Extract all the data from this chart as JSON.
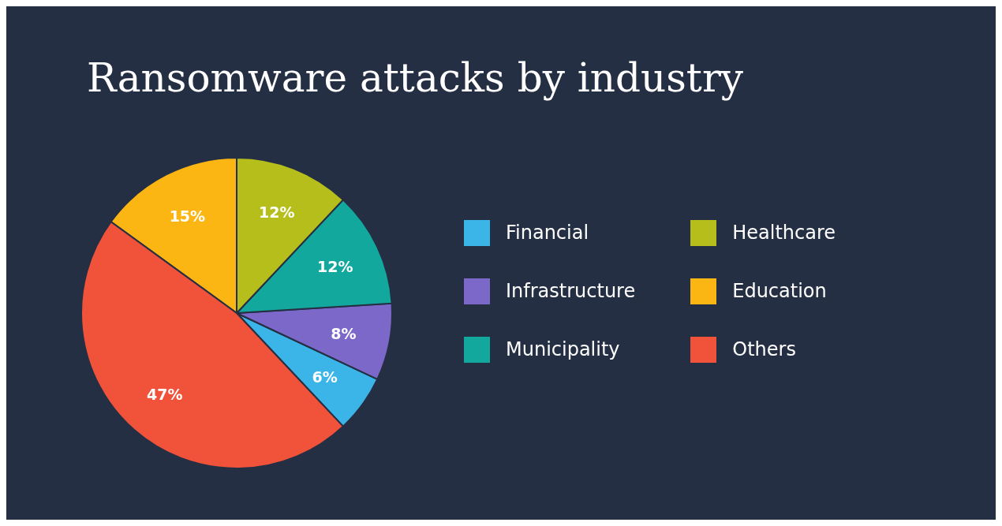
{
  "chart_data": {
    "type": "pie",
    "title": "Ransomware attacks by industry",
    "categories": [
      "Financial",
      "Infrastructure",
      "Municipality",
      "Healthcare",
      "Education",
      "Others"
    ],
    "values": [
      6,
      8,
      12,
      12,
      15,
      47
    ],
    "value_labels": [
      "6%",
      "8%",
      "12%",
      "12%",
      "15%",
      "47%"
    ],
    "colors": [
      "#3bb5e8",
      "#7b68c8",
      "#13a89e",
      "#b5be1a",
      "#fbb614",
      "#f0523a"
    ],
    "legend": "right"
  }
}
